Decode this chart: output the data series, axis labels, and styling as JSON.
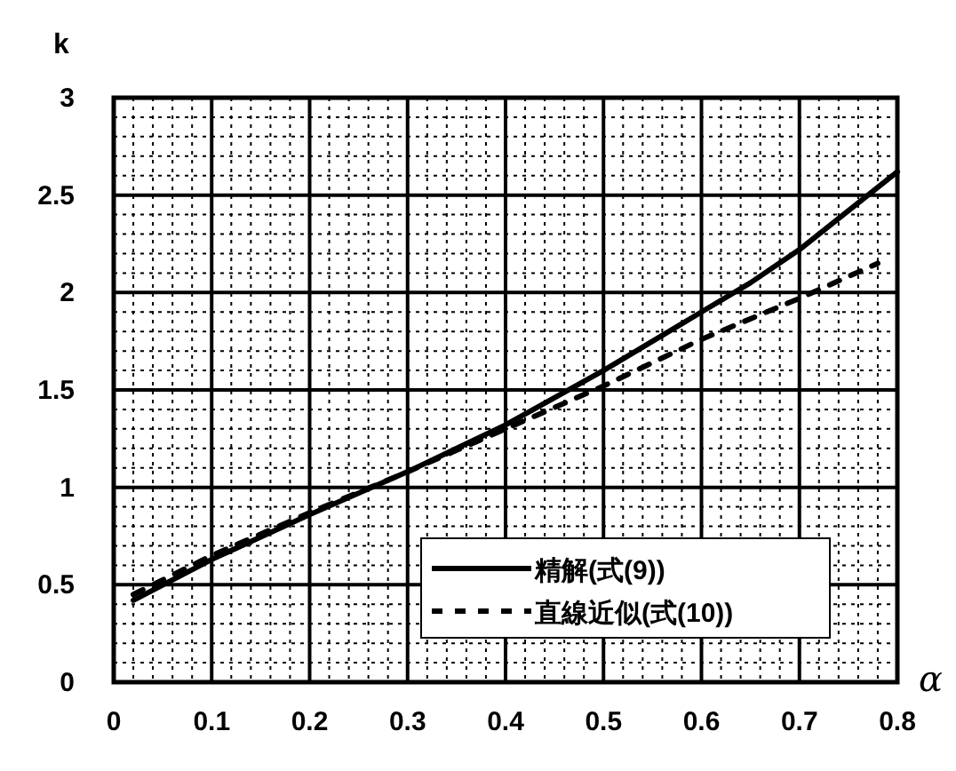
{
  "chart_data": {
    "type": "line",
    "xlabel": "α",
    "ylabel": "k",
    "xlim": [
      0,
      0.8
    ],
    "ylim": [
      0,
      3
    ],
    "xticks": [
      0,
      0.1,
      0.2,
      0.3,
      0.4,
      0.5,
      0.6,
      0.7,
      0.8
    ],
    "yticks": [
      0,
      0.5,
      1,
      1.5,
      2,
      2.5,
      3
    ],
    "grid": true,
    "legend": "bottom right",
    "series": [
      {
        "name": "精解(式(9))",
        "color": "#000000",
        "line_style": "solid",
        "x": [
          0.02,
          0.1,
          0.2,
          0.3,
          0.4,
          0.5,
          0.6,
          0.65,
          0.7,
          0.8
        ],
        "values": [
          0.42,
          0.63,
          0.86,
          1.08,
          1.32,
          1.6,
          1.9,
          2.05,
          2.22,
          2.62
        ]
      },
      {
        "name": "直線近似(式(10))",
        "color": "#000000",
        "line_style": "dashed",
        "x": [
          0.02,
          0.1,
          0.2,
          0.3,
          0.4,
          0.5,
          0.6,
          0.7,
          0.78
        ],
        "values": [
          0.45,
          0.65,
          0.87,
          1.08,
          1.3,
          1.52,
          1.76,
          1.97,
          2.15
        ]
      }
    ]
  }
}
